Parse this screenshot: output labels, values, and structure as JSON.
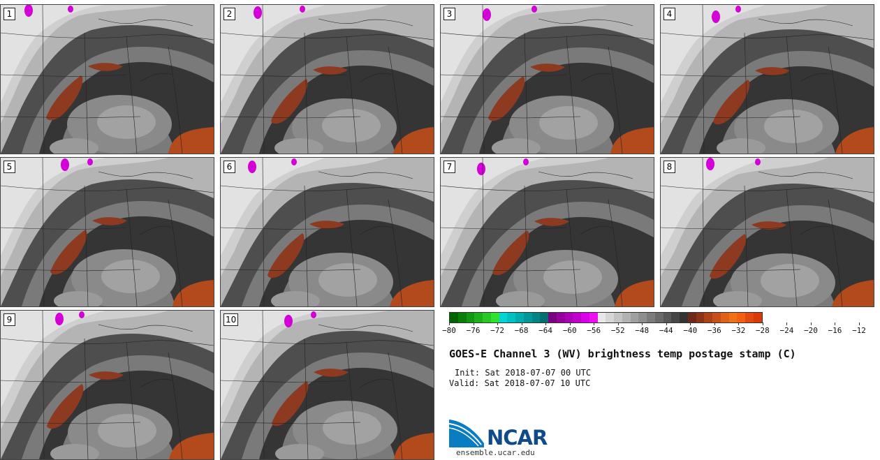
{
  "panels": [
    {
      "label": "1"
    },
    {
      "label": "2"
    },
    {
      "label": "3"
    },
    {
      "label": "4"
    },
    {
      "label": "5"
    },
    {
      "label": "6"
    },
    {
      "label": "7"
    },
    {
      "label": "8"
    },
    {
      "label": "9"
    },
    {
      "label": "10"
    }
  ],
  "colorbar": {
    "colors": [
      "#006400",
      "#0a7d0a",
      "#139613",
      "#1caf1c",
      "#25c825",
      "#2ee22e",
      "#00d4d4",
      "#00c0c0",
      "#00acac",
      "#009898",
      "#008484",
      "#007070",
      "#7d0080",
      "#94009a",
      "#ab00b4",
      "#c200ce",
      "#d900e8",
      "#ec10f0",
      "#e8e8e8",
      "#d6d6d6",
      "#c4c4c4",
      "#b2b2b2",
      "#a0a0a0",
      "#8e8e8e",
      "#7c7c7c",
      "#6a6a6a",
      "#585858",
      "#464646",
      "#343434",
      "#6b2a1a",
      "#8b3418",
      "#ab4218",
      "#c85018",
      "#e06018",
      "#f07018",
      "#f06010",
      "#e04a10",
      "#d83a08"
    ],
    "ticks": [
      "−80",
      "−76",
      "−72",
      "−68",
      "−64",
      "−60",
      "−56",
      "−52",
      "−48",
      "−44",
      "−40",
      "−36",
      "−32",
      "−28",
      "−24",
      "−20",
      "−16",
      "−12"
    ]
  },
  "title": "GOES-E Channel 3 (WV) brightness temp postage stamp (C)",
  "init": "Init: Sat 2018-07-07 00 UTC",
  "valid": "Valid: Sat 2018-07-07 10 UTC",
  "logo": {
    "name": "NCAR",
    "site": "ensemble.ucar.edu"
  }
}
